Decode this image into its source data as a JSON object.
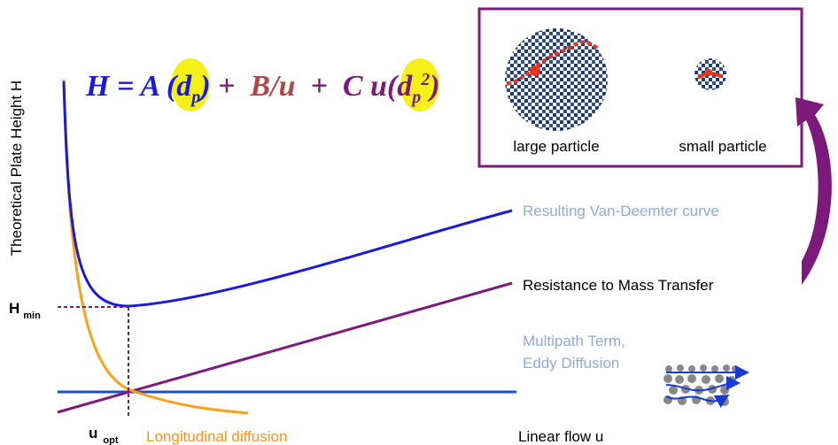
{
  "y_axis_label": "Theoretical Plate Height H",
  "equation": {
    "segments": [
      "H = A ",
      "(d",
      "p",
      ")",
      " +  ",
      "B/u",
      "  +  ",
      "C u(d",
      "p",
      "2",
      ")"
    ]
  },
  "curve_labels": {
    "van_deemter": "Resulting Van-Deemter curve",
    "mass_transfer": "Resistance to Mass Transfer",
    "multipath": [
      "Multipath Term,",
      "Eddy Diffusion"
    ],
    "longitudinal": "Longitudinal diffusion"
  },
  "x_axis_label": "Linear flow u",
  "h_min": {
    "main": "H",
    "sub": "min"
  },
  "u_opt": {
    "main": "u",
    "sub": "opt"
  },
  "inset": {
    "large": "large particle",
    "small": "small particle"
  }
}
